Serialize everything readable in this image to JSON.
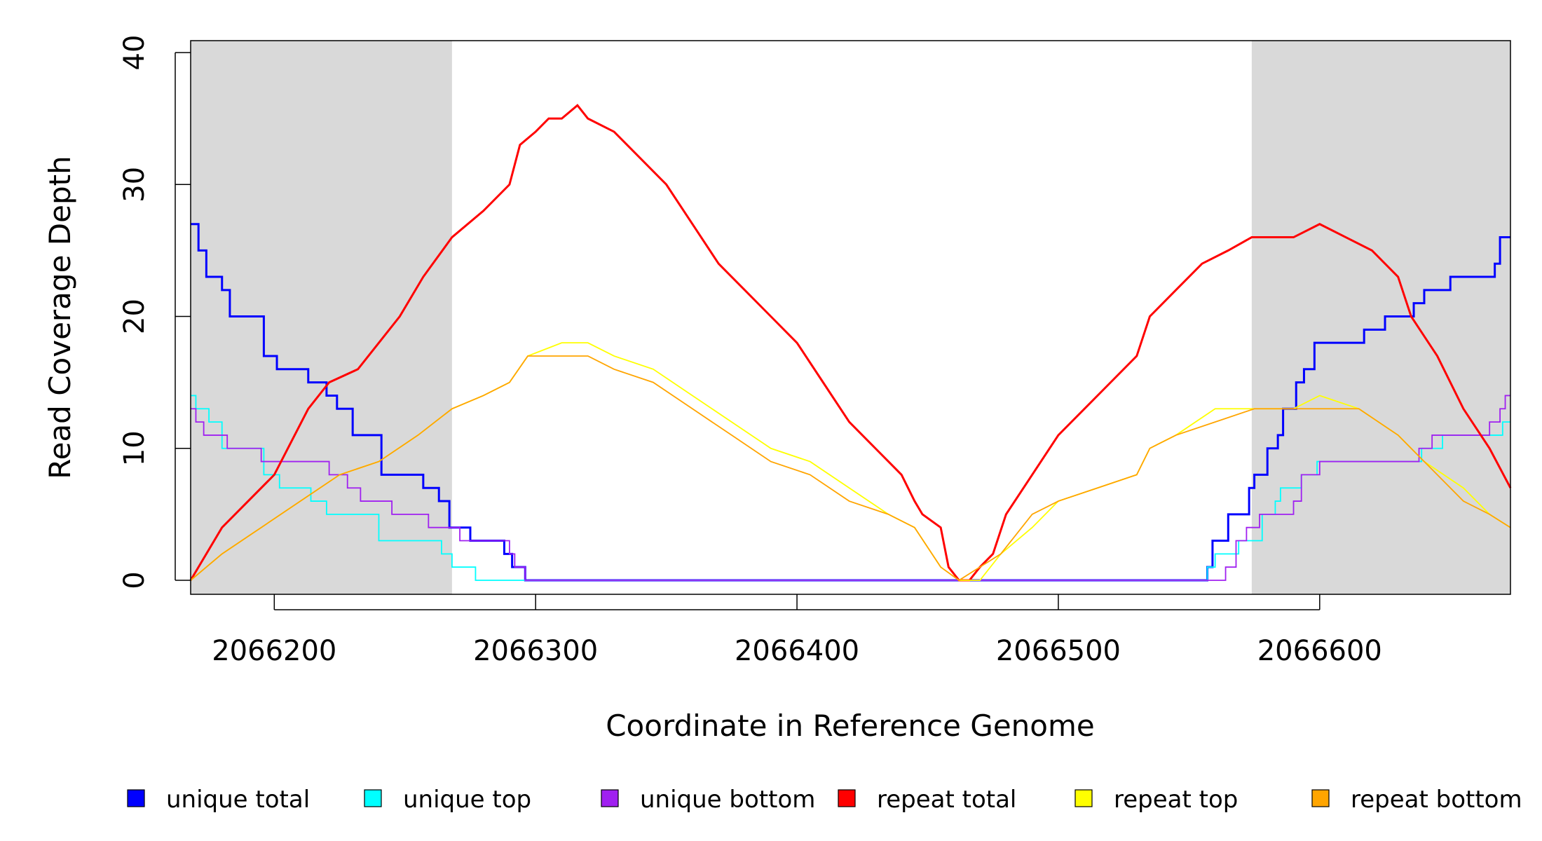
{
  "chart_data": {
    "type": "line",
    "xlabel": "Coordinate in Reference Genome",
    "ylabel": "Read Coverage Depth",
    "xlim": [
      2066168,
      2066673
    ],
    "ylim": [
      0,
      40
    ],
    "xticks": [
      2066200,
      2066300,
      2066400,
      2066500,
      2066600
    ],
    "yticks": [
      0,
      10,
      20,
      30,
      40
    ],
    "shaded_regions": [
      [
        2066168,
        2066268
      ],
      [
        2066574,
        2066673
      ]
    ],
    "legend_position": "bottom",
    "series": [
      {
        "name": "unique total",
        "color": "#0000ff",
        "step": true,
        "points": [
          [
            2066168,
            27
          ],
          [
            2066171,
            25
          ],
          [
            2066174,
            23
          ],
          [
            2066180,
            22
          ],
          [
            2066183,
            20
          ],
          [
            2066196,
            17
          ],
          [
            2066201,
            16
          ],
          [
            2066213,
            15
          ],
          [
            2066220,
            14
          ],
          [
            2066224,
            13
          ],
          [
            2066230,
            11
          ],
          [
            2066241,
            8
          ],
          [
            2066257,
            7
          ],
          [
            2066263,
            6
          ],
          [
            2066267,
            4
          ],
          [
            2066275,
            3
          ],
          [
            2066288,
            2
          ],
          [
            2066291,
            1
          ],
          [
            2066296,
            0
          ],
          [
            2066555,
            0
          ],
          [
            2066557,
            1
          ],
          [
            2066559,
            3
          ],
          [
            2066565,
            5
          ],
          [
            2066573,
            7
          ],
          [
            2066575,
            8
          ],
          [
            2066580,
            10
          ],
          [
            2066584,
            11
          ],
          [
            2066586,
            13
          ],
          [
            2066591,
            15
          ],
          [
            2066594,
            16
          ],
          [
            2066598,
            18
          ],
          [
            2066617,
            19
          ],
          [
            2066625,
            20
          ],
          [
            2066636,
            21
          ],
          [
            2066640,
            22
          ],
          [
            2066650,
            23
          ],
          [
            2066667,
            24
          ],
          [
            2066669,
            26
          ],
          [
            2066673,
            26
          ]
        ]
      },
      {
        "name": "unique top",
        "color": "#00ffff",
        "step": true,
        "points": [
          [
            2066168,
            14
          ],
          [
            2066170,
            13
          ],
          [
            2066175,
            12
          ],
          [
            2066180,
            10
          ],
          [
            2066196,
            8
          ],
          [
            2066202,
            7
          ],
          [
            2066214,
            6
          ],
          [
            2066220,
            5
          ],
          [
            2066240,
            3
          ],
          [
            2066264,
            2
          ],
          [
            2066268,
            1
          ],
          [
            2066277,
            0
          ],
          [
            2066555,
            0
          ],
          [
            2066557,
            1
          ],
          [
            2066560,
            2
          ],
          [
            2066569,
            3
          ],
          [
            2066578,
            5
          ],
          [
            2066583,
            6
          ],
          [
            2066585,
            7
          ],
          [
            2066593,
            8
          ],
          [
            2066599,
            9
          ],
          [
            2066639,
            10
          ],
          [
            2066647,
            11
          ],
          [
            2066670,
            12
          ],
          [
            2066673,
            12
          ]
        ]
      },
      {
        "name": "unique bottom",
        "color": "#a020f0",
        "step": true,
        "points": [
          [
            2066168,
            13
          ],
          [
            2066170,
            12
          ],
          [
            2066173,
            11
          ],
          [
            2066182,
            10
          ],
          [
            2066195,
            9
          ],
          [
            2066221,
            8
          ],
          [
            2066228,
            7
          ],
          [
            2066233,
            6
          ],
          [
            2066245,
            5
          ],
          [
            2066259,
            4
          ],
          [
            2066271,
            3
          ],
          [
            2066290,
            2
          ],
          [
            2066292,
            1
          ],
          [
            2066296,
            0
          ],
          [
            2066560,
            0
          ],
          [
            2066564,
            1
          ],
          [
            2066568,
            3
          ],
          [
            2066572,
            4
          ],
          [
            2066577,
            5
          ],
          [
            2066590,
            6
          ],
          [
            2066593,
            8
          ],
          [
            2066600,
            9
          ],
          [
            2066638,
            10
          ],
          [
            2066643,
            11
          ],
          [
            2066665,
            12
          ],
          [
            2066669,
            13
          ],
          [
            2066671,
            14
          ],
          [
            2066673,
            14
          ]
        ]
      },
      {
        "name": "repeat total",
        "color": "#ff0000",
        "points": [
          [
            2066168,
            0
          ],
          [
            2066180,
            4
          ],
          [
            2066200,
            8
          ],
          [
            2066213,
            13
          ],
          [
            2066221,
            15
          ],
          [
            2066232,
            16
          ],
          [
            2066240,
            18
          ],
          [
            2066248,
            20
          ],
          [
            2066257,
            23
          ],
          [
            2066268,
            26
          ],
          [
            2066280,
            28
          ],
          [
            2066290,
            30
          ],
          [
            2066294,
            33
          ],
          [
            2066300,
            34
          ],
          [
            2066305,
            35
          ],
          [
            2066310,
            35
          ],
          [
            2066316,
            36
          ],
          [
            2066320,
            35
          ],
          [
            2066330,
            34
          ],
          [
            2066340,
            32
          ],
          [
            2066350,
            30
          ],
          [
            2066360,
            27
          ],
          [
            2066370,
            24
          ],
          [
            2066380,
            22
          ],
          [
            2066390,
            20
          ],
          [
            2066400,
            18
          ],
          [
            2066410,
            15
          ],
          [
            2066420,
            12
          ],
          [
            2066430,
            10
          ],
          [
            2066440,
            8
          ],
          [
            2066445,
            6
          ],
          [
            2066448,
            5
          ],
          [
            2066455,
            4
          ],
          [
            2066458,
            1
          ],
          [
            2066462,
            0
          ],
          [
            2066466,
            0
          ],
          [
            2066470,
            1
          ],
          [
            2066475,
            2
          ],
          [
            2066480,
            5
          ],
          [
            2066490,
            8
          ],
          [
            2066500,
            11
          ],
          [
            2066510,
            13
          ],
          [
            2066520,
            15
          ],
          [
            2066530,
            17
          ],
          [
            2066535,
            20
          ],
          [
            2066545,
            22
          ],
          [
            2066555,
            24
          ],
          [
            2066565,
            25
          ],
          [
            2066574,
            26
          ],
          [
            2066590,
            26
          ],
          [
            2066600,
            27
          ],
          [
            2066610,
            26
          ],
          [
            2066620,
            25
          ],
          [
            2066630,
            23
          ],
          [
            2066635,
            20
          ],
          [
            2066645,
            17
          ],
          [
            2066655,
            13
          ],
          [
            2066665,
            10
          ],
          [
            2066673,
            7
          ]
        ]
      },
      {
        "name": "repeat top",
        "color": "#ffff00",
        "points": [
          [
            2066168,
            0
          ],
          [
            2066180,
            2
          ],
          [
            2066195,
            4
          ],
          [
            2066210,
            6
          ],
          [
            2066225,
            8
          ],
          [
            2066240,
            9
          ],
          [
            2066255,
            11
          ],
          [
            2066268,
            13
          ],
          [
            2066280,
            14
          ],
          [
            2066290,
            15
          ],
          [
            2066297,
            17
          ],
          [
            2066310,
            18
          ],
          [
            2066320,
            18
          ],
          [
            2066330,
            17
          ],
          [
            2066345,
            16
          ],
          [
            2066360,
            14
          ],
          [
            2066375,
            12
          ],
          [
            2066390,
            10
          ],
          [
            2066405,
            9
          ],
          [
            2066420,
            7
          ],
          [
            2066435,
            5
          ],
          [
            2066445,
            4
          ],
          [
            2066455,
            1
          ],
          [
            2066462,
            0
          ],
          [
            2066470,
            0
          ],
          [
            2066478,
            2
          ],
          [
            2066490,
            4
          ],
          [
            2066500,
            6
          ],
          [
            2066515,
            7
          ],
          [
            2066530,
            8
          ],
          [
            2066535,
            10
          ],
          [
            2066545,
            11
          ],
          [
            2066560,
            13
          ],
          [
            2066575,
            13
          ],
          [
            2066590,
            13
          ],
          [
            2066600,
            14
          ],
          [
            2066615,
            13
          ],
          [
            2066630,
            11
          ],
          [
            2066640,
            9
          ],
          [
            2066655,
            7
          ],
          [
            2066665,
            5
          ],
          [
            2066673,
            4
          ]
        ]
      },
      {
        "name": "repeat bottom",
        "color": "#ffa500",
        "points": [
          [
            2066168,
            0
          ],
          [
            2066180,
            2
          ],
          [
            2066195,
            4
          ],
          [
            2066210,
            6
          ],
          [
            2066225,
            8
          ],
          [
            2066240,
            9
          ],
          [
            2066255,
            11
          ],
          [
            2066268,
            13
          ],
          [
            2066280,
            14
          ],
          [
            2066290,
            15
          ],
          [
            2066297,
            17
          ],
          [
            2066310,
            17
          ],
          [
            2066320,
            17
          ],
          [
            2066330,
            16
          ],
          [
            2066345,
            15
          ],
          [
            2066360,
            13
          ],
          [
            2066375,
            11
          ],
          [
            2066390,
            9
          ],
          [
            2066405,
            8
          ],
          [
            2066420,
            6
          ],
          [
            2066435,
            5
          ],
          [
            2066445,
            4
          ],
          [
            2066455,
            1
          ],
          [
            2066462,
            0
          ],
          [
            2066470,
            1
          ],
          [
            2066478,
            2
          ],
          [
            2066490,
            5
          ],
          [
            2066500,
            6
          ],
          [
            2066515,
            7
          ],
          [
            2066530,
            8
          ],
          [
            2066535,
            10
          ],
          [
            2066545,
            11
          ],
          [
            2066560,
            12
          ],
          [
            2066575,
            13
          ],
          [
            2066590,
            13
          ],
          [
            2066600,
            13
          ],
          [
            2066615,
            13
          ],
          [
            2066630,
            11
          ],
          [
            2066640,
            9
          ],
          [
            2066655,
            6
          ],
          [
            2066665,
            5
          ],
          [
            2066673,
            4
          ]
        ]
      }
    ]
  }
}
